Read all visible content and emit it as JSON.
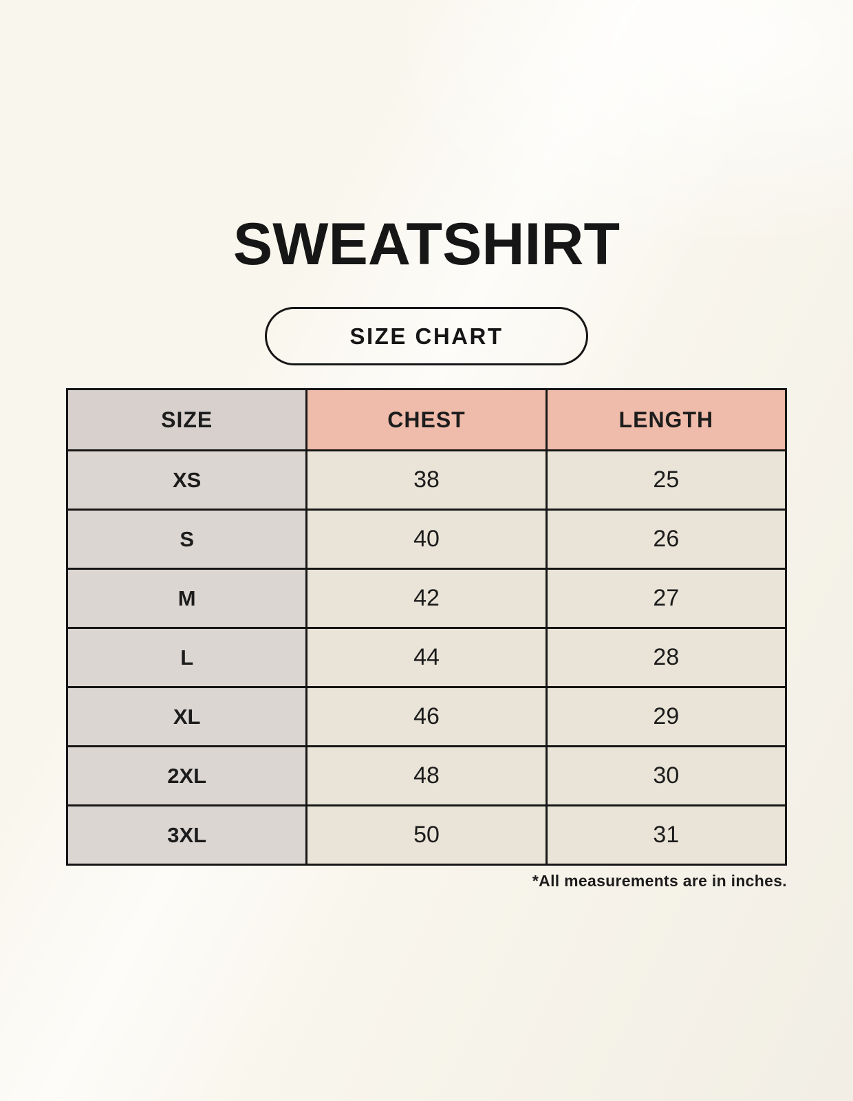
{
  "colors": {
    "background": "#f9f6ed",
    "border": "#161616",
    "text": "#1c1c1c",
    "header_size_bg": "#d7d0cd",
    "header_measure_bg": "#efbcab",
    "cell_size_bg": "#dcd6d2",
    "cell_value_bg": "#eae4d8"
  },
  "page": {
    "title": "SWEATSHIRT",
    "badge_label": "SIZE CHART",
    "note": "*All measurements are in inches."
  },
  "chart_data": {
    "type": "table",
    "title": "SWEATSHIRT",
    "columns": [
      "SIZE",
      "CHEST",
      "LENGTH"
    ],
    "rows": [
      [
        "XS",
        "38",
        "25"
      ],
      [
        "S",
        "40",
        "26"
      ],
      [
        "M",
        "42",
        "27"
      ],
      [
        "L",
        "44",
        "28"
      ],
      [
        "XL",
        "46",
        "29"
      ],
      [
        "2XL",
        "48",
        "30"
      ],
      [
        "3XL",
        "50",
        "31"
      ]
    ],
    "units": "inches",
    "note": "*All measurements are in inches."
  }
}
